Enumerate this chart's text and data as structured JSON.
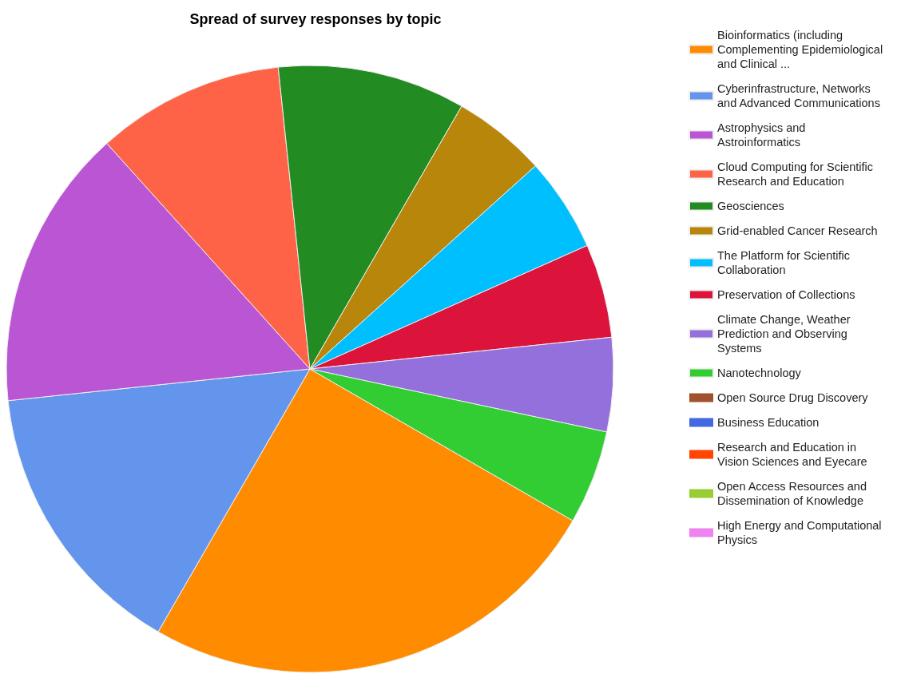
{
  "chart_data": {
    "type": "pie",
    "title": "Spread of survey responses by topic",
    "categories": [
      "Bioinformatics (including Complementing Epidemiological and Clinical ...",
      "Cyberinfrastructure, Networks and Advanced Communications",
      "Astrophysics and Astroinformatics",
      "Cloud Computing for Scientific Research and Education",
      "Geosciences",
      "Grid-enabled Cancer Research",
      "The Platform for Scientific Collaboration",
      "Preservation of Collections",
      "Climate Change, Weather Prediction and Observing Systems",
      "Nanotechnology",
      "Open Source Drug Discovery",
      "Business Education",
      "Research and Education in Vision Sciences and Eyecare",
      "Open Access Resources and Dissemination of Knowledge",
      "High Energy and Computational Physics"
    ],
    "values": [
      25,
      15,
      15,
      10,
      10,
      5,
      5,
      5,
      5,
      5,
      0,
      0,
      0,
      0,
      0
    ],
    "colors": [
      "#ff8c00",
      "#6495ed",
      "#ba55d3",
      "#ff6347",
      "#228b22",
      "#b8860b",
      "#00bfff",
      "#dc143c",
      "#9370db",
      "#32cd32",
      "#a0522d",
      "#4169e1",
      "#ff4500",
      "#9acd32",
      "#ee82ee"
    ],
    "legend": "right"
  }
}
